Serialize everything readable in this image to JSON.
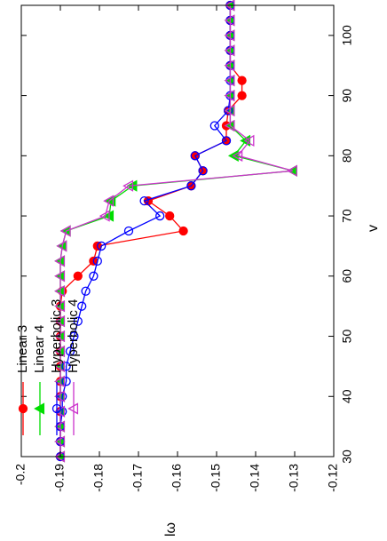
{
  "chart_data": {
    "type": "line",
    "title": "",
    "xlabel": "v",
    "ylabel": "lω",
    "xlim": [
      30,
      105
    ],
    "ylim": [
      -0.2,
      -0.12
    ],
    "x_ticks": [
      "30",
      "40",
      "50",
      "60",
      "70",
      "80",
      "90",
      "100"
    ],
    "y_ticks": [
      "-0.12",
      "-0.13",
      "-0.14",
      "-0.15",
      "-0.16",
      "-0.17",
      "-0.18",
      "-0.19",
      "-0.2"
    ],
    "grid": false,
    "legend_position": "bottom-left",
    "rotated": "90-degrees-counterclockwise",
    "series": [
      {
        "name": "Linear 3",
        "color": "#ff0000",
        "marker": "filled-circle",
        "x": [
          30,
          32.5,
          35,
          37.5,
          40,
          42.5,
          45,
          47.5,
          50,
          52.5,
          55,
          57.5,
          60,
          62.5,
          65,
          67.5,
          70,
          72.5,
          75,
          77.5,
          80,
          82.5,
          85,
          87.5,
          90,
          92.5,
          95,
          97.5,
          100,
          102.5,
          105
        ],
        "y": [
          -0.19,
          -0.19,
          -0.19,
          -0.19,
          -0.19,
          -0.19,
          -0.19,
          -0.19,
          -0.19,
          -0.19,
          -0.19,
          -0.1895,
          -0.1855,
          -0.1815,
          -0.1805,
          -0.1585,
          -0.162,
          -0.1675,
          -0.1565,
          -0.1535,
          -0.1555,
          -0.1475,
          -0.1475,
          -0.147,
          -0.1435,
          -0.1435,
          -0.1465,
          -0.1465,
          -0.1465,
          -0.1465,
          -0.1465
        ]
      },
      {
        "name": "Linear 4",
        "color": "#00dd00",
        "marker": "filled-triangle",
        "x": [
          30,
          32.5,
          35,
          37.5,
          40,
          42.5,
          45,
          47.5,
          50,
          52.5,
          55,
          57.5,
          60,
          62.5,
          65,
          67.5,
          70,
          72.5,
          75,
          77.5,
          80,
          82.5,
          85,
          87.5,
          90,
          92.5,
          95,
          97.5,
          100,
          102.5,
          105
        ],
        "y": [
          -0.19,
          -0.19,
          -0.19,
          -0.19,
          -0.19,
          -0.19,
          -0.19,
          -0.19,
          -0.19,
          -0.19,
          -0.19,
          -0.19,
          -0.19,
          -0.19,
          -0.1895,
          -0.1885,
          -0.1775,
          -0.177,
          -0.1715,
          -0.1305,
          -0.1455,
          -0.1425,
          -0.1465,
          -0.1465,
          -0.1465,
          -0.1465,
          -0.1465,
          -0.1465,
          -0.1465,
          -0.1465,
          -0.1465
        ]
      },
      {
        "name": "Hyperbolic 3",
        "color": "#0000ff",
        "marker": "open-circle",
        "x": [
          30,
          32.5,
          35,
          37.5,
          40,
          42.5,
          45,
          47.5,
          50,
          52.5,
          55,
          57.5,
          60,
          62.5,
          65,
          67.5,
          70,
          72.5,
          75,
          77.5,
          80,
          82.5,
          85,
          87.5,
          90,
          92.5,
          95,
          97.5,
          100,
          102.5,
          105
        ],
        "y": [
          -0.19,
          -0.19,
          -0.19,
          -0.1895,
          -0.1895,
          -0.1885,
          -0.1885,
          -0.1875,
          -0.1865,
          -0.1855,
          -0.1845,
          -0.1835,
          -0.1815,
          -0.1805,
          -0.1795,
          -0.1725,
          -0.1645,
          -0.1685,
          -0.1565,
          -0.1535,
          -0.1555,
          -0.1475,
          -0.1505,
          -0.147,
          -0.1465,
          -0.1465,
          -0.1465,
          -0.1465,
          -0.1465,
          -0.1465,
          -0.1465
        ]
      },
      {
        "name": "Hyperbolic 4",
        "color": "#cc33cc",
        "marker": "open-triangle",
        "x": [
          30,
          32.5,
          35,
          37.5,
          40,
          42.5,
          45,
          47.5,
          50,
          52.5,
          55,
          57.5,
          60,
          62.5,
          65,
          67.5,
          70,
          72.5,
          75,
          77.5,
          80,
          82.5,
          85,
          87.5,
          90,
          92.5,
          95,
          97.5,
          100,
          102.5,
          105
        ],
        "y": [
          -0.19,
          -0.19,
          -0.19,
          -0.19,
          -0.19,
          -0.19,
          -0.19,
          -0.19,
          -0.19,
          -0.19,
          -0.19,
          -0.19,
          -0.19,
          -0.19,
          -0.1895,
          -0.1885,
          -0.1785,
          -0.1775,
          -0.1725,
          -0.1305,
          -0.1445,
          -0.1415,
          -0.1465,
          -0.1465,
          -0.1465,
          -0.1465,
          -0.1465,
          -0.1465,
          -0.1465,
          -0.1465,
          -0.1465
        ]
      }
    ]
  }
}
